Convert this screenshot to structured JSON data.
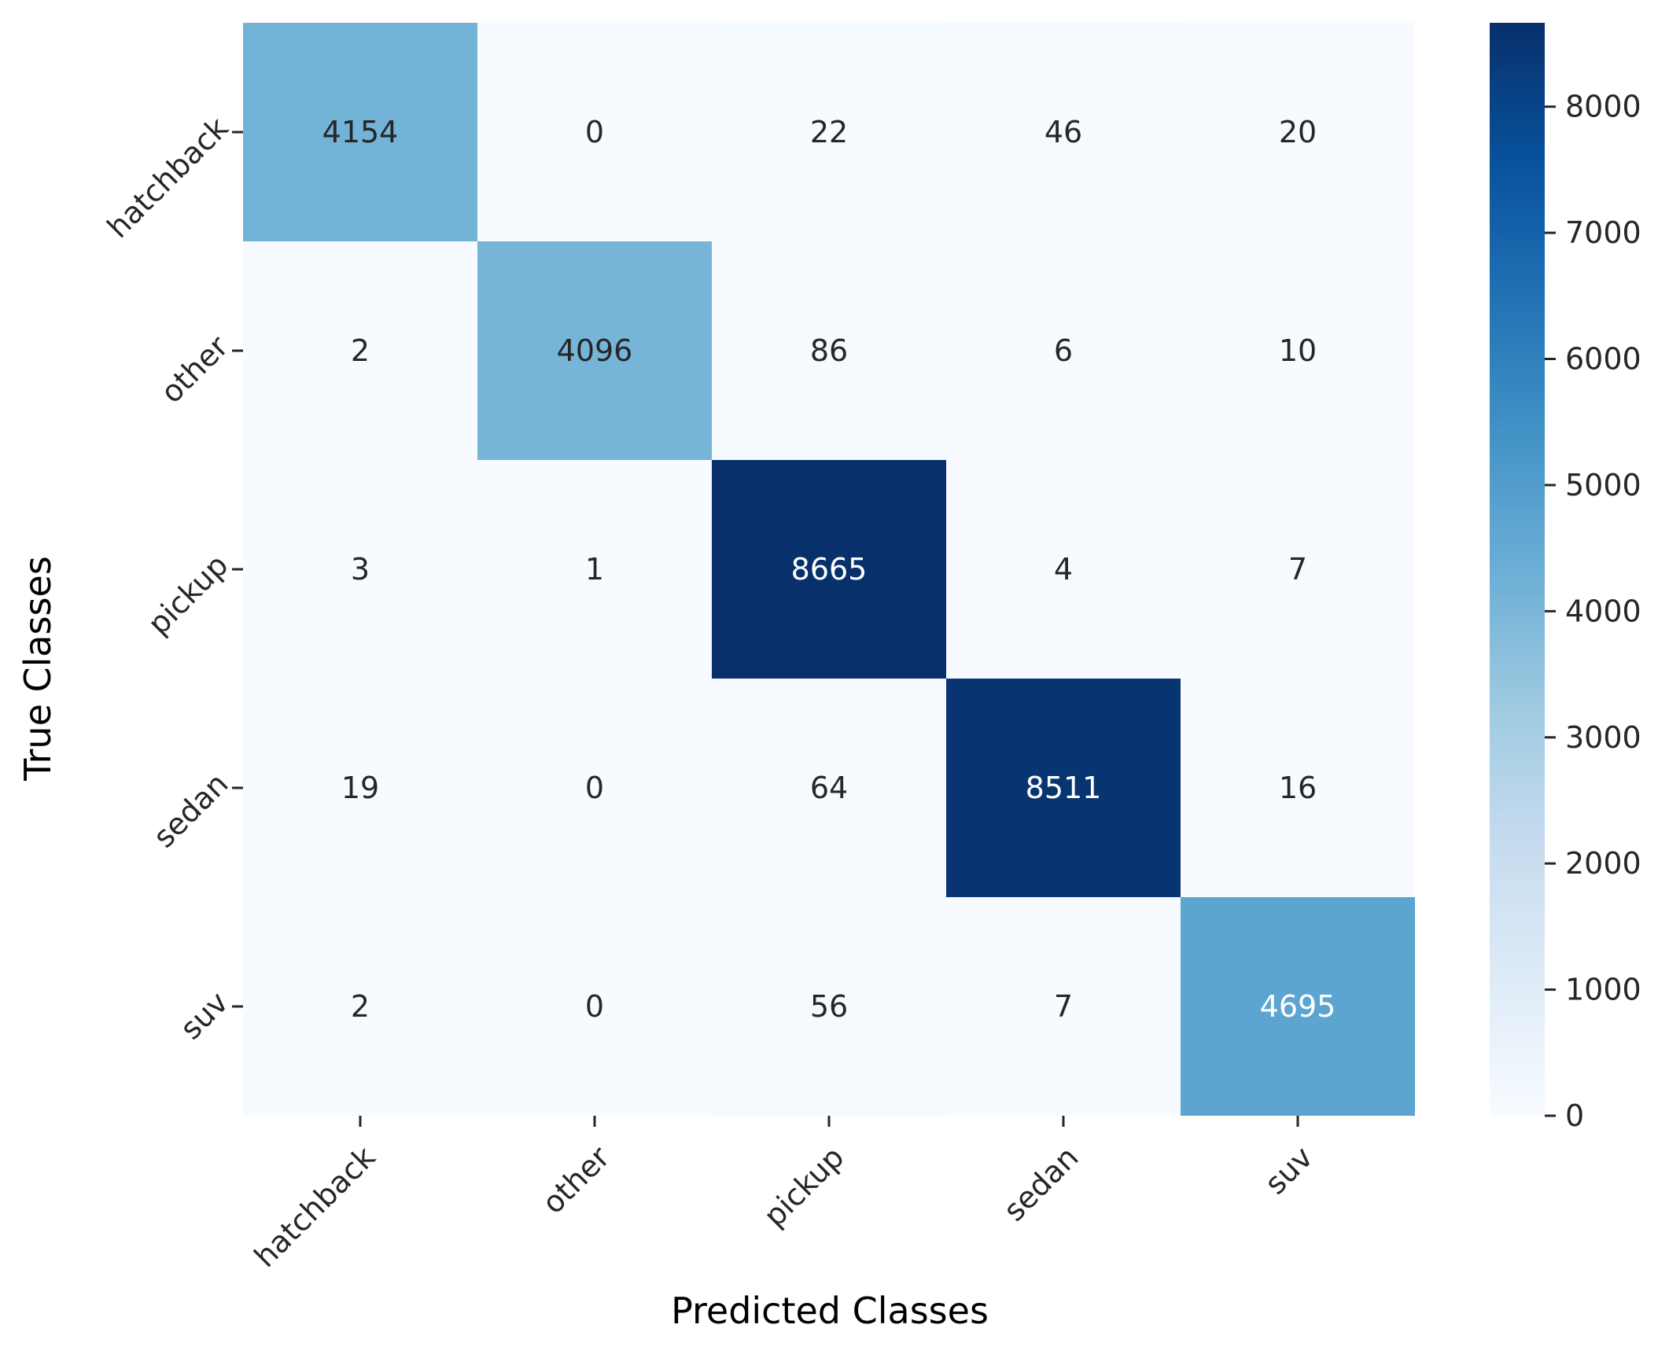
{
  "chart_data": {
    "type": "heatmap",
    "title": "",
    "xlabel": "Predicted Classes",
    "ylabel": "True Classes",
    "x_categories": [
      "hatchback",
      "other",
      "pickup",
      "sedan",
      "suv"
    ],
    "y_categories": [
      "hatchback",
      "other",
      "pickup",
      "sedan",
      "suv"
    ],
    "values": [
      [
        4154,
        0,
        22,
        46,
        20
      ],
      [
        2,
        4096,
        86,
        6,
        10
      ],
      [
        3,
        1,
        8665,
        4,
        7
      ],
      [
        19,
        0,
        64,
        8511,
        16
      ],
      [
        2,
        0,
        56,
        7,
        4695
      ]
    ],
    "colormap": "Blues",
    "color_range": [
      0,
      8665
    ],
    "colorbar_ticks": [
      0,
      1000,
      2000,
      3000,
      4000,
      5000,
      6000,
      7000,
      8000
    ],
    "colorbar_tick_labels": [
      "0",
      "1000",
      "2000",
      "3000",
      "4000",
      "5000",
      "6000",
      "7000",
      "8000"
    ],
    "tick_label_rotation": 45,
    "grid": false,
    "legend": "colorbar-right"
  }
}
